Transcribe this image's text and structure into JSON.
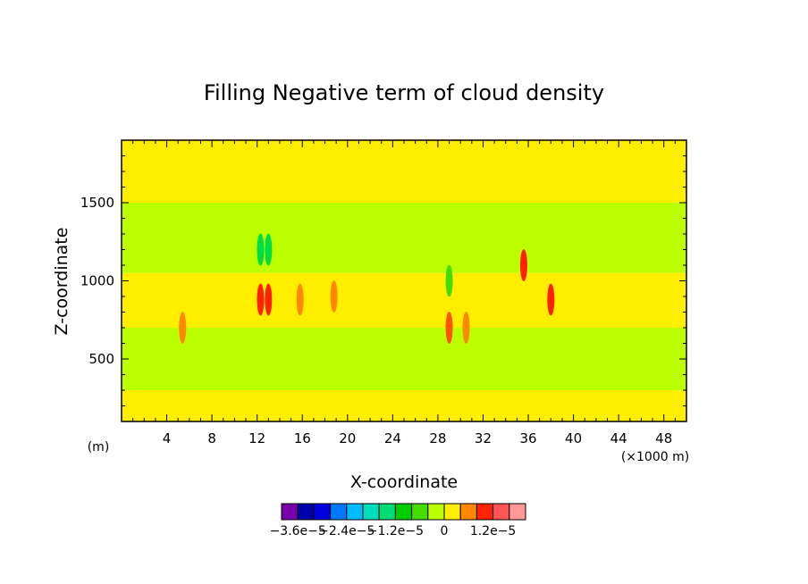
{
  "chart_data": {
    "type": "heatmap",
    "title": "Filling Negative term of cloud density",
    "xlabel": "X-coordinate",
    "ylabel": "Z-coordinate",
    "x_unit_label": "(m)",
    "x_scale_label": "(×1000 m)",
    "xlim": [
      0,
      50
    ],
    "ylim": [
      100,
      1900
    ],
    "xticks": [
      4,
      8,
      12,
      16,
      20,
      24,
      28,
      32,
      36,
      40,
      44,
      48
    ],
    "yticks": [
      500,
      1000,
      1500
    ],
    "bands": [
      {
        "z": [
          1500,
          1900
        ],
        "level": "0 to 6e-6",
        "color": "#ffee00"
      },
      {
        "z": [
          1050,
          1500
        ],
        "level": "-6e-6 to 0",
        "color": "#bbff00"
      },
      {
        "z": [
          700,
          1050
        ],
        "level": "0 to 6e-6",
        "color": "#ffee00"
      },
      {
        "z": [
          300,
          700
        ],
        "level": "-6e-6 to 0",
        "color": "#bbff00"
      },
      {
        "z": [
          100,
          300
        ],
        "level": "0 to 6e-6",
        "color": "#ffee00"
      }
    ],
    "features": [
      {
        "x": 12.3,
        "z": 1200,
        "level": "-1.8e-5",
        "color": "#00dd44"
      },
      {
        "x": 13.0,
        "z": 1200,
        "level": "-1.8e-5",
        "color": "#00dd44"
      },
      {
        "x": 12.3,
        "z": 880,
        "level": "1.8e-5",
        "color": "#ff2200"
      },
      {
        "x": 13.0,
        "z": 880,
        "level": "1.8e-5",
        "color": "#ff2200"
      },
      {
        "x": 15.8,
        "z": 880,
        "level": "1.2e-5",
        "color": "#ff8800"
      },
      {
        "x": 18.8,
        "z": 900,
        "level": "6e-6",
        "color": "#ff8800"
      },
      {
        "x": 29.0,
        "z": 700,
        "level": "1.2e-5",
        "color": "#ff5500"
      },
      {
        "x": 30.5,
        "z": 700,
        "level": "6e-6",
        "color": "#ff8800"
      },
      {
        "x": 35.6,
        "z": 1100,
        "level": "1.8e-5",
        "color": "#ff2200"
      },
      {
        "x": 38.0,
        "z": 880,
        "level": "1.8e-5",
        "color": "#ff2200"
      },
      {
        "x": 5.4,
        "z": 700,
        "level": "6e-6",
        "color": "#ff8800"
      },
      {
        "x": 29.0,
        "z": 1000,
        "level": "-1.2e-5",
        "color": "#44dd00"
      }
    ],
    "legend": {
      "colors": [
        "#7700aa",
        "#0000aa",
        "#0000dd",
        "#0077ff",
        "#00bbff",
        "#00ddbb",
        "#00dd77",
        "#00cc00",
        "#44dd00",
        "#bbff00",
        "#ffee00",
        "#ff8800",
        "#ff2200",
        "#ff5555",
        "#ff9999"
      ],
      "labels": [
        "−3.6e−5",
        "−2.4e−5",
        "−1.2e−5",
        "0",
        "1.2e−5"
      ],
      "label_boundaries": [
        1,
        4,
        7,
        10,
        13
      ]
    }
  }
}
